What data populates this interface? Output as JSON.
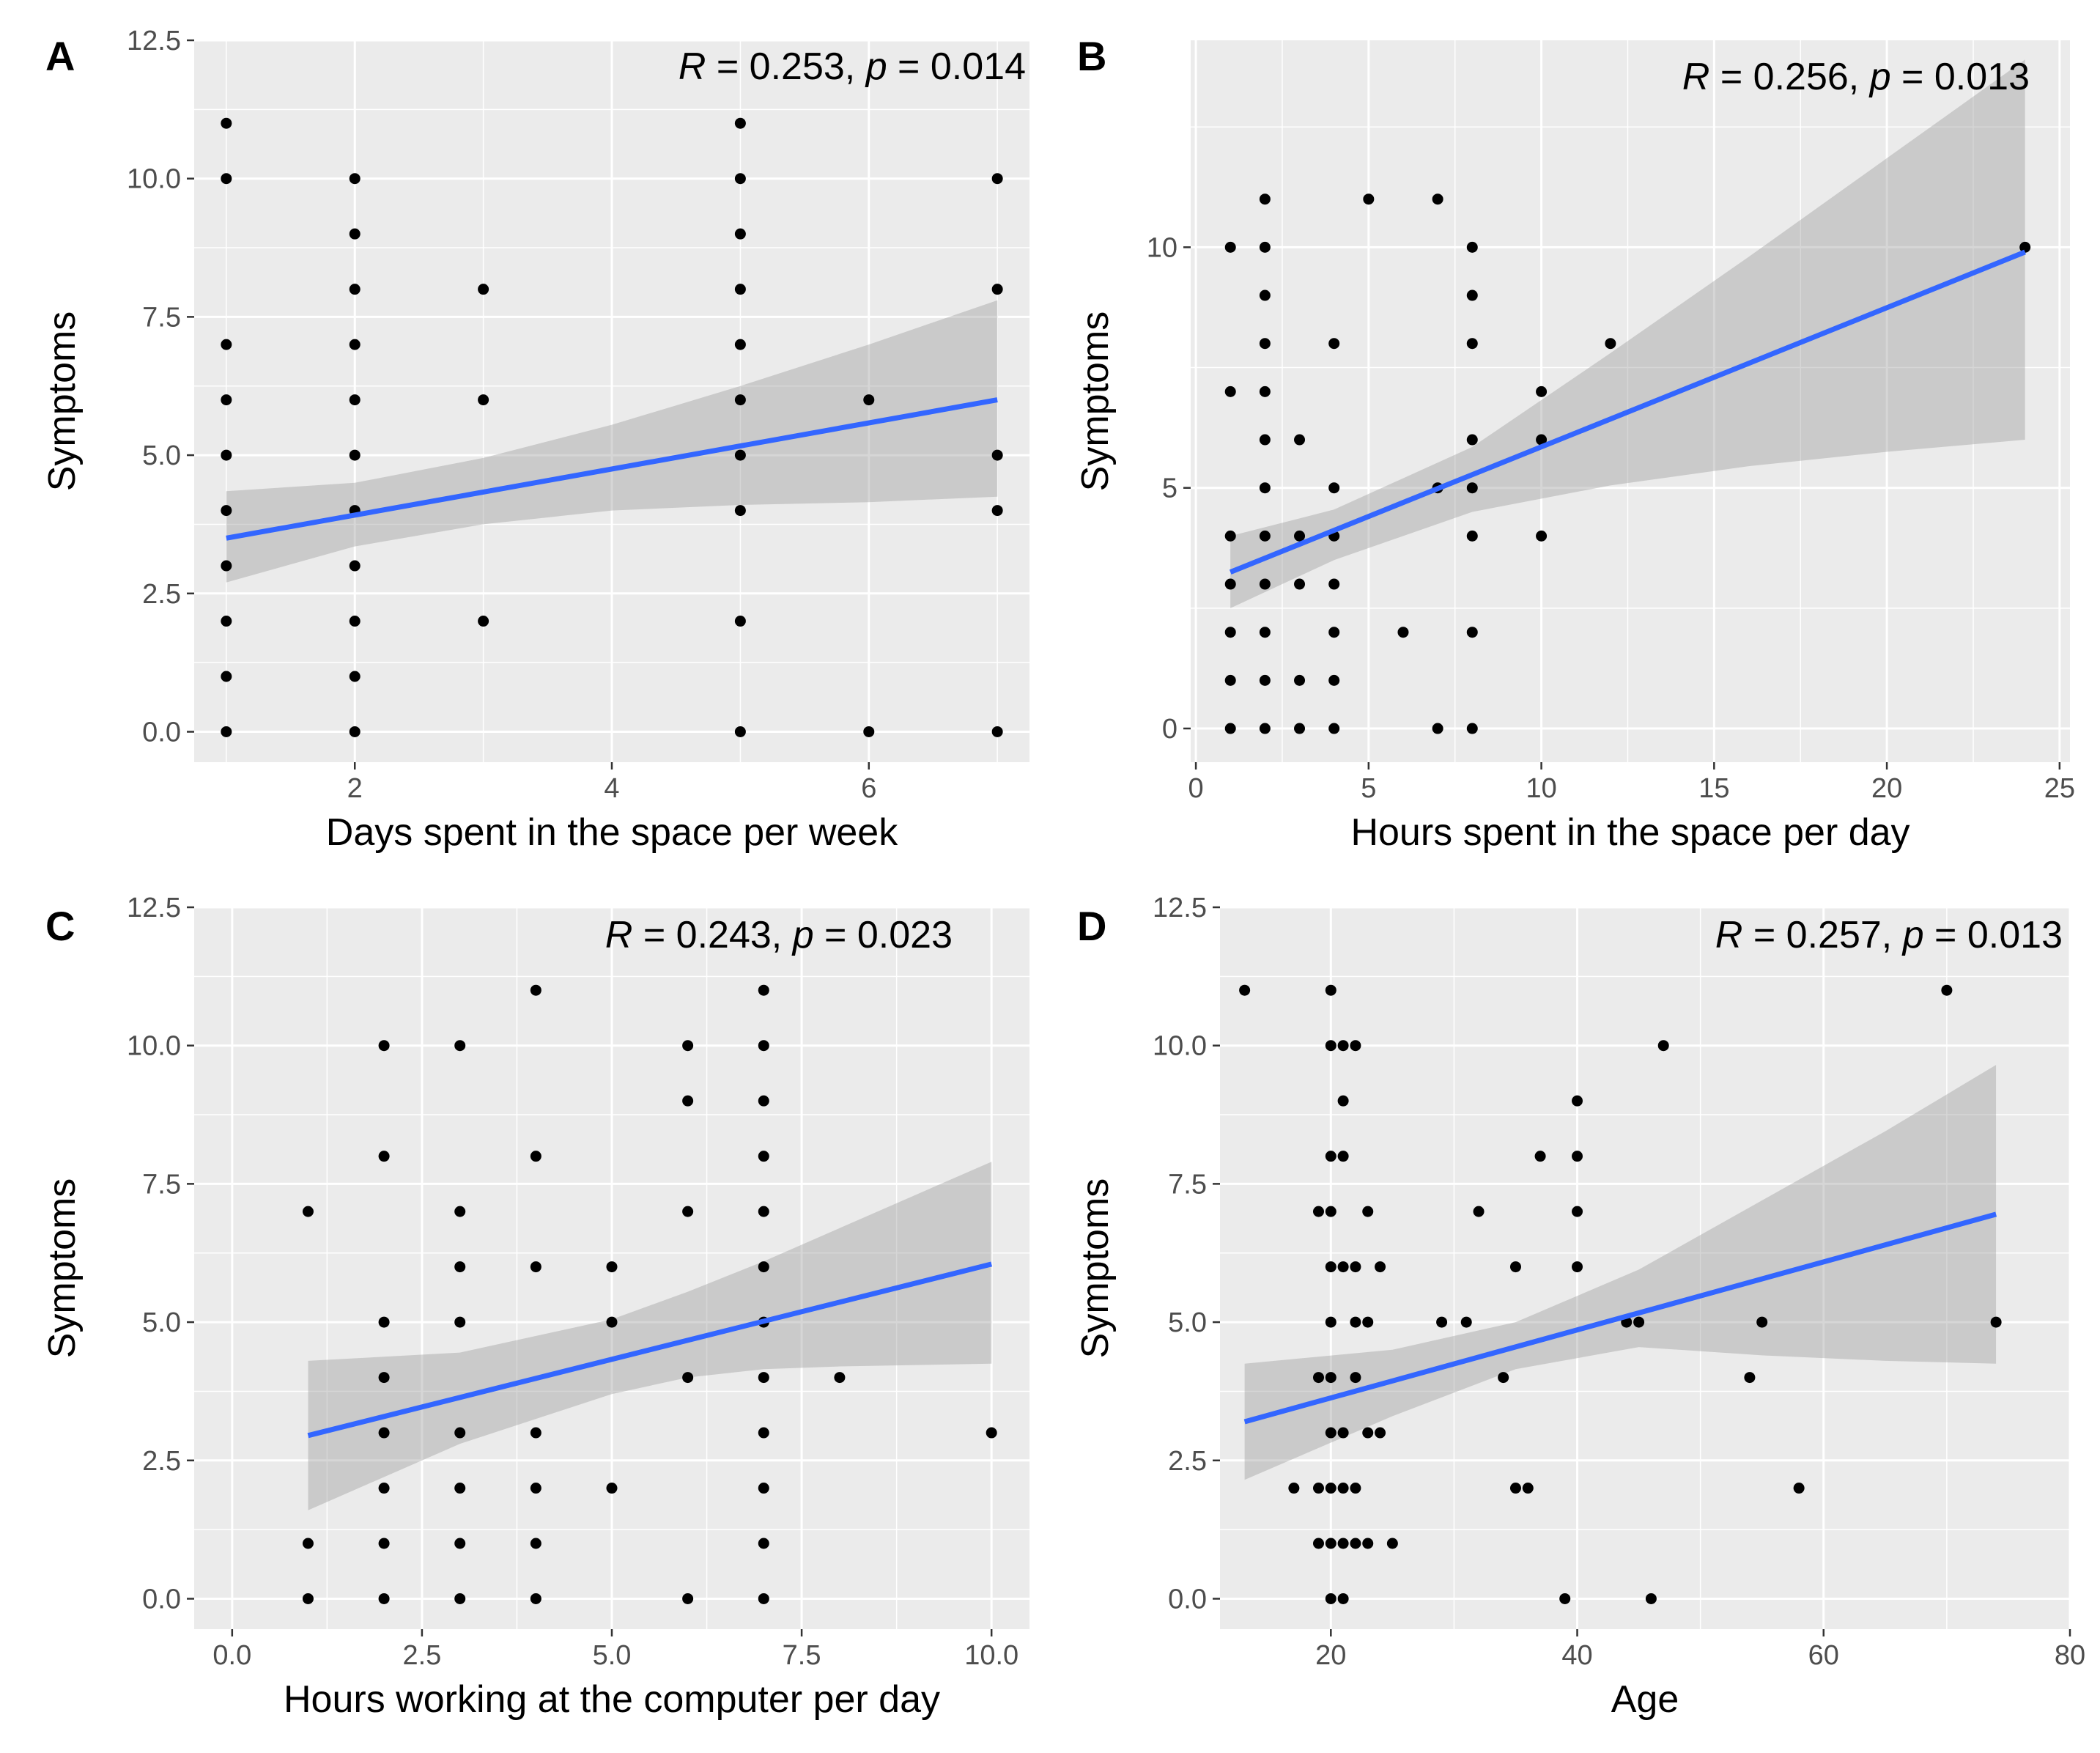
{
  "chart_data": [
    {
      "panel": "A",
      "type": "scatter",
      "xlabel": "Days spent in the space per week",
      "ylabel": "Symptoms",
      "xlim": [
        0.75,
        7.25
      ],
      "ylim": [
        -0.55,
        12.5
      ],
      "xticks": [
        2,
        4,
        6
      ],
      "xtick_labels": [
        "2",
        "4",
        "6"
      ],
      "yticks": [
        0,
        2.5,
        5,
        7.5,
        10,
        12.5
      ],
      "ytick_labels": [
        "0.0",
        "2.5",
        "5.0",
        "7.5",
        "10.0",
        "12.5"
      ],
      "annotation": {
        "r_label": "R",
        "r_value": " = 0.253, ",
        "p_label": "p",
        "p_value": " = 0.014"
      },
      "points": [
        [
          1,
          0
        ],
        [
          1,
          1
        ],
        [
          1,
          2
        ],
        [
          1,
          3
        ],
        [
          1,
          4
        ],
        [
          1,
          5
        ],
        [
          1,
          6
        ],
        [
          1,
          7
        ],
        [
          1,
          10
        ],
        [
          1,
          11
        ],
        [
          2,
          0
        ],
        [
          2,
          1
        ],
        [
          2,
          2
        ],
        [
          2,
          3
        ],
        [
          2,
          4
        ],
        [
          2,
          5
        ],
        [
          2,
          6
        ],
        [
          2,
          7
        ],
        [
          2,
          8
        ],
        [
          2,
          9
        ],
        [
          2,
          10
        ],
        [
          3,
          2
        ],
        [
          3,
          6
        ],
        [
          3,
          8
        ],
        [
          5,
          0
        ],
        [
          5,
          2
        ],
        [
          5,
          4
        ],
        [
          5,
          5
        ],
        [
          5,
          6
        ],
        [
          5,
          7
        ],
        [
          5,
          8
        ],
        [
          5,
          9
        ],
        [
          5,
          10
        ],
        [
          5,
          11
        ],
        [
          6,
          0
        ],
        [
          6,
          6
        ],
        [
          7,
          0
        ],
        [
          7,
          4
        ],
        [
          7,
          5
        ],
        [
          7,
          8
        ],
        [
          7,
          10
        ]
      ],
      "fit": {
        "x": [
          1,
          7
        ],
        "y": [
          3.5,
          6.0
        ]
      },
      "band": {
        "x": [
          1,
          2,
          3,
          4,
          5,
          6,
          7
        ],
        "lower": [
          2.7,
          3.35,
          3.75,
          4.0,
          4.1,
          4.15,
          4.25
        ],
        "upper": [
          4.35,
          4.5,
          4.95,
          5.55,
          6.25,
          7.0,
          7.8
        ]
      }
    },
    {
      "panel": "B",
      "type": "scatter",
      "xlabel": "Hours spent in the space per day",
      "ylabel": "Symptoms",
      "xlim": [
        -0.15,
        25.3
      ],
      "ylim": [
        -0.7,
        14.3
      ],
      "xticks": [
        0,
        5,
        10,
        15,
        20,
        25
      ],
      "xtick_labels": [
        "0",
        "5",
        "10",
        "15",
        "20",
        "25"
      ],
      "yticks": [
        0,
        5,
        10
      ],
      "ytick_labels": [
        "0",
        "5",
        "10"
      ],
      "annotation": {
        "r_label": "R",
        "r_value": " = 0.256, ",
        "p_label": "p",
        "p_value": " = 0.013"
      },
      "points": [
        [
          1,
          0
        ],
        [
          1,
          1
        ],
        [
          1,
          2
        ],
        [
          1,
          3
        ],
        [
          1,
          4
        ],
        [
          1,
          7
        ],
        [
          1,
          10
        ],
        [
          2,
          0
        ],
        [
          2,
          1
        ],
        [
          2,
          2
        ],
        [
          2,
          3
        ],
        [
          2,
          4
        ],
        [
          2,
          5
        ],
        [
          2,
          6
        ],
        [
          2,
          7
        ],
        [
          2,
          8
        ],
        [
          2,
          9
        ],
        [
          2,
          10
        ],
        [
          2,
          11
        ],
        [
          3,
          0
        ],
        [
          3,
          1
        ],
        [
          3,
          3
        ],
        [
          3,
          4
        ],
        [
          3,
          6
        ],
        [
          4,
          0
        ],
        [
          4,
          1
        ],
        [
          4,
          2
        ],
        [
          4,
          3
        ],
        [
          4,
          4
        ],
        [
          4,
          5
        ],
        [
          4,
          8
        ],
        [
          5,
          11
        ],
        [
          6,
          2
        ],
        [
          7,
          0
        ],
        [
          7,
          5
        ],
        [
          7,
          11
        ],
        [
          8,
          0
        ],
        [
          8,
          2
        ],
        [
          8,
          4
        ],
        [
          8,
          5
        ],
        [
          8,
          6
        ],
        [
          8,
          8
        ],
        [
          8,
          9
        ],
        [
          8,
          10
        ],
        [
          10,
          4
        ],
        [
          10,
          6
        ],
        [
          10,
          7
        ],
        [
          12,
          8
        ],
        [
          24,
          10
        ]
      ],
      "fit": {
        "x": [
          1,
          24
        ],
        "y": [
          3.25,
          9.9
        ]
      },
      "band": {
        "x": [
          1,
          4,
          8,
          12,
          16,
          20,
          24
        ],
        "lower": [
          2.5,
          3.5,
          4.5,
          5.05,
          5.45,
          5.75,
          6.0
        ],
        "upper": [
          4.0,
          4.55,
          5.85,
          7.8,
          9.8,
          11.85,
          13.9
        ]
      }
    },
    {
      "panel": "C",
      "type": "scatter",
      "xlabel": "Hours working at the computer per day",
      "ylabel": "Symptoms",
      "xlim": [
        -0.5,
        10.5
      ],
      "ylim": [
        -0.55,
        12.5
      ],
      "xticks": [
        0,
        2.5,
        5,
        7.5,
        10
      ],
      "xtick_labels": [
        "0.0",
        "2.5",
        "5.0",
        "7.5",
        "10.0"
      ],
      "yticks": [
        0,
        2.5,
        5,
        7.5,
        10,
        12.5
      ],
      "ytick_labels": [
        "0.0",
        "2.5",
        "5.0",
        "7.5",
        "10.0",
        "12.5"
      ],
      "annotation": {
        "r_label": "R",
        "r_value": " = 0.243, ",
        "p_label": "p",
        "p_value": " = 0.023"
      },
      "points": [
        [
          1,
          0
        ],
        [
          1,
          1
        ],
        [
          1,
          7
        ],
        [
          2,
          0
        ],
        [
          2,
          1
        ],
        [
          2,
          2
        ],
        [
          2,
          3
        ],
        [
          2,
          4
        ],
        [
          2,
          5
        ],
        [
          2,
          8
        ],
        [
          2,
          10
        ],
        [
          3,
          0
        ],
        [
          3,
          1
        ],
        [
          3,
          2
        ],
        [
          3,
          3
        ],
        [
          3,
          5
        ],
        [
          3,
          6
        ],
        [
          3,
          7
        ],
        [
          3,
          10
        ],
        [
          4,
          0
        ],
        [
          4,
          1
        ],
        [
          4,
          2
        ],
        [
          4,
          3
        ],
        [
          4,
          6
        ],
        [
          4,
          8
        ],
        [
          4,
          11
        ],
        [
          5,
          2
        ],
        [
          5,
          5
        ],
        [
          5,
          6
        ],
        [
          6,
          0
        ],
        [
          6,
          4
        ],
        [
          6,
          7
        ],
        [
          6,
          9
        ],
        [
          6,
          10
        ],
        [
          7,
          0
        ],
        [
          7,
          1
        ],
        [
          7,
          2
        ],
        [
          7,
          3
        ],
        [
          7,
          4
        ],
        [
          7,
          5
        ],
        [
          7,
          6
        ],
        [
          7,
          7
        ],
        [
          7,
          8
        ],
        [
          7,
          9
        ],
        [
          7,
          10
        ],
        [
          7,
          11
        ],
        [
          8,
          4
        ],
        [
          10,
          3
        ]
      ],
      "fit": {
        "x": [
          1,
          10
        ],
        "y": [
          2.95,
          6.05
        ]
      },
      "band": {
        "x": [
          1,
          3,
          5,
          6,
          7,
          8,
          10
        ],
        "lower": [
          1.6,
          2.8,
          3.7,
          4.0,
          4.15,
          4.2,
          4.25
        ],
        "upper": [
          4.3,
          4.45,
          5.05,
          5.55,
          6.1,
          6.7,
          7.9
        ]
      }
    },
    {
      "panel": "D",
      "type": "scatter",
      "xlabel": "Age",
      "ylabel": "Symptoms",
      "xlim": [
        11,
        80
      ],
      "ylim": [
        -0.55,
        12.5
      ],
      "xticks": [
        20,
        40,
        60,
        80
      ],
      "xtick_labels": [
        "20",
        "40",
        "60",
        "80"
      ],
      "yticks": [
        0,
        2.5,
        5,
        7.5,
        10,
        12.5
      ],
      "ytick_labels": [
        "0.0",
        "2.5",
        "5.0",
        "7.5",
        "10.0",
        "12.5"
      ],
      "annotation": {
        "r_label": "R",
        "r_value": " = 0.257, ",
        "p_label": "p",
        "p_value": " = 0.013"
      },
      "points": [
        [
          13,
          11
        ],
        [
          17,
          2
        ],
        [
          19,
          1
        ],
        [
          19,
          2
        ],
        [
          19,
          4
        ],
        [
          19,
          7
        ],
        [
          20,
          0
        ],
        [
          20,
          1
        ],
        [
          20,
          2
        ],
        [
          20,
          3
        ],
        [
          20,
          4
        ],
        [
          20,
          5
        ],
        [
          20,
          6
        ],
        [
          20,
          7
        ],
        [
          20,
          8
        ],
        [
          20,
          10
        ],
        [
          20,
          11
        ],
        [
          21,
          0
        ],
        [
          21,
          1
        ],
        [
          21,
          2
        ],
        [
          21,
          3
        ],
        [
          21,
          6
        ],
        [
          21,
          8
        ],
        [
          21,
          9
        ],
        [
          21,
          10
        ],
        [
          22,
          1
        ],
        [
          22,
          2
        ],
        [
          22,
          4
        ],
        [
          22,
          5
        ],
        [
          22,
          6
        ],
        [
          22,
          10
        ],
        [
          23,
          1
        ],
        [
          23,
          3
        ],
        [
          23,
          5
        ],
        [
          23,
          7
        ],
        [
          24,
          3
        ],
        [
          24,
          6
        ],
        [
          25,
          1
        ],
        [
          29,
          5
        ],
        [
          31,
          5
        ],
        [
          32,
          7
        ],
        [
          34,
          4
        ],
        [
          35,
          2
        ],
        [
          35,
          6
        ],
        [
          36,
          2
        ],
        [
          37,
          8
        ],
        [
          39,
          0
        ],
        [
          40,
          6
        ],
        [
          40,
          7
        ],
        [
          40,
          8
        ],
        [
          40,
          9
        ],
        [
          44,
          5
        ],
        [
          45,
          5
        ],
        [
          46,
          0
        ],
        [
          47,
          10
        ],
        [
          54,
          4
        ],
        [
          55,
          5
        ],
        [
          58,
          2
        ],
        [
          70,
          11
        ],
        [
          74,
          5
        ]
      ],
      "fit": {
        "x": [
          13,
          74
        ],
        "y": [
          3.2,
          6.95
        ]
      },
      "band": {
        "x": [
          13,
          25,
          35,
          45,
          55,
          65,
          74
        ],
        "lower": [
          2.15,
          3.3,
          4.15,
          4.55,
          4.4,
          4.3,
          4.25
        ],
        "upper": [
          4.25,
          4.5,
          5.0,
          5.95,
          7.2,
          8.45,
          9.65
        ]
      }
    }
  ]
}
